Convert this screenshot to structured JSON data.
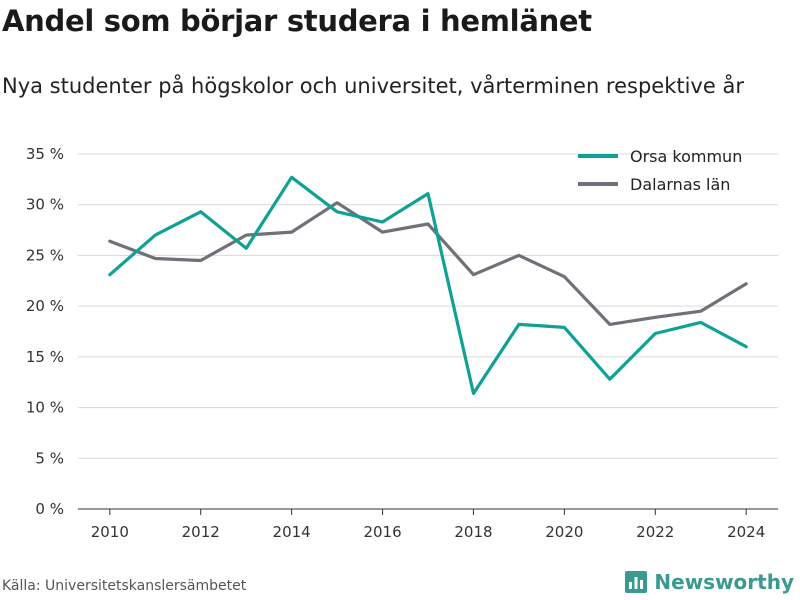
{
  "title": "Andel som börjar studera i hemlänet",
  "subtitle": "Nya studenter på högskolor och universitet, vårterminen respektive år",
  "source": "Källa: Universitetskanslersämbetet",
  "brand": {
    "name": "Newsworthy",
    "icon": "bar-chart-logo-icon",
    "color": "#3a9a8f"
  },
  "chart_data": {
    "type": "line",
    "x": [
      2010,
      2011,
      2012,
      2013,
      2014,
      2015,
      2016,
      2017,
      2018,
      2019,
      2020,
      2021,
      2022,
      2023,
      2024
    ],
    "xticks": [
      2010,
      2012,
      2014,
      2016,
      2018,
      2020,
      2022,
      2024
    ],
    "xtick_labels": [
      "2010",
      "2012",
      "2014",
      "2016",
      "2018",
      "2020",
      "2022",
      "2024"
    ],
    "yticks": [
      0,
      5,
      10,
      15,
      20,
      25,
      30,
      35
    ],
    "ytick_labels": [
      "0 %",
      "5 %",
      "10 %",
      "15 %",
      "20 %",
      "25 %",
      "30 %",
      "35 %"
    ],
    "ylim": [
      0,
      35
    ],
    "xlim": [
      2009.3,
      2024.7
    ],
    "grid": true,
    "legend_position": "top-right",
    "series": [
      {
        "name": "Orsa kommun",
        "color": "#0fa196",
        "values": [
          23.1,
          27.0,
          29.3,
          25.7,
          32.7,
          29.3,
          28.3,
          31.1,
          11.4,
          18.2,
          17.9,
          12.8,
          17.3,
          18.4,
          16.0
        ]
      },
      {
        "name": "Dalarnas län",
        "color": "#707078",
        "values": [
          26.4,
          24.7,
          24.5,
          27.0,
          27.3,
          30.2,
          27.3,
          28.1,
          23.1,
          25.0,
          22.9,
          18.2,
          18.9,
          19.5,
          22.2
        ]
      }
    ]
  }
}
